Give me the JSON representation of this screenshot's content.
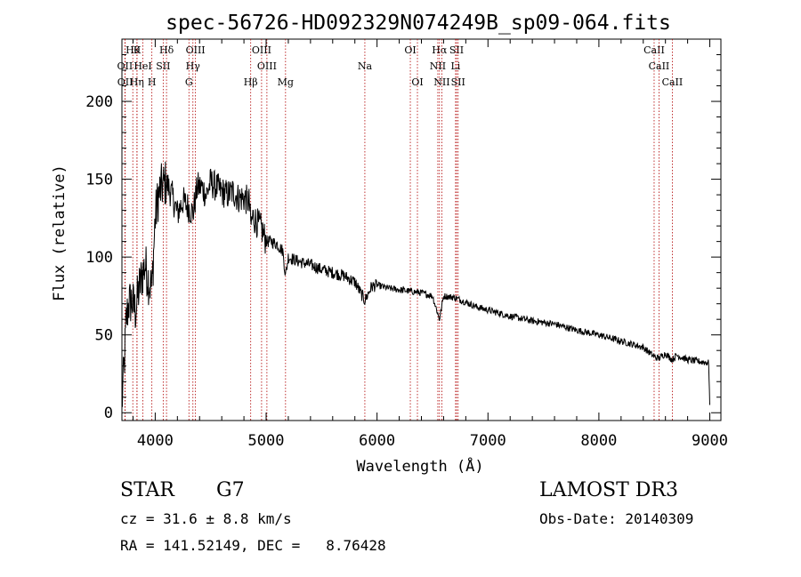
{
  "chart_data": {
    "type": "line",
    "title": "spec-56726-HD092329N074249B_sp09-064.fits",
    "xlabel": "Wavelength (Å)",
    "ylabel": "Flux (relative)",
    "xlim": [
      3700,
      9100
    ],
    "ylim": [
      -5,
      240
    ],
    "xticks": [
      4000,
      5000,
      6000,
      7000,
      8000,
      9000
    ],
    "yticks": [
      0,
      50,
      100,
      150,
      200
    ],
    "series": [
      {
        "name": "spectrum",
        "x": [
          3700,
          3720,
          3740,
          3760,
          3790,
          3820,
          3850,
          3880,
          3910,
          3940,
          3970,
          4000,
          4030,
          4060,
          4100,
          4150,
          4200,
          4250,
          4300,
          4340,
          4380,
          4420,
          4460,
          4500,
          4550,
          4600,
          4650,
          4700,
          4750,
          4800,
          4850,
          4861,
          4880,
          4920,
          4960,
          5000,
          5050,
          5100,
          5150,
          5175,
          5200,
          5300,
          5400,
          5500,
          5600,
          5700,
          5800,
          5890,
          5950,
          6000,
          6100,
          6200,
          6300,
          6400,
          6500,
          6563,
          6600,
          6700,
          6800,
          6900,
          7000,
          7200,
          7400,
          7600,
          7800,
          8000,
          8200,
          8400,
          8498,
          8542,
          8600,
          8662,
          8700,
          8800,
          8900,
          8990,
          9000
        ],
        "y": [
          5,
          30,
          60,
          70,
          72,
          65,
          78,
          88,
          95,
          85,
          80,
          125,
          140,
          145,
          148,
          140,
          128,
          136,
          132,
          128,
          145,
          145,
          140,
          148,
          145,
          142,
          140,
          142,
          138,
          138,
          135,
          120,
          126,
          122,
          118,
          110,
          110,
          108,
          104,
          88,
          100,
          97,
          95,
          92,
          90,
          88,
          84,
          72,
          81,
          82,
          80,
          79,
          78,
          77,
          75,
          60,
          75,
          74,
          71,
          68,
          66,
          62,
          59,
          57,
          53,
          50,
          46,
          42,
          36,
          35,
          38,
          34,
          37,
          34,
          33,
          32,
          5
        ]
      }
    ],
    "lines": [
      {
        "wl": 3798,
        "label": "Hθ",
        "row": 0
      },
      {
        "wl": 3836,
        "label": "K",
        "row": 0
      },
      {
        "wl": 4102,
        "label": "Hδ",
        "row": 0
      },
      {
        "wl": 4363,
        "label": "OIII",
        "row": 0
      },
      {
        "wl": 4959,
        "label": "OIII",
        "row": 0
      },
      {
        "wl": 6300,
        "label": "OI",
        "row": 0
      },
      {
        "wl": 6563,
        "label": "Hα",
        "row": 0
      },
      {
        "wl": 6717,
        "label": "SII",
        "row": 0
      },
      {
        "wl": 8498,
        "label": "CaII",
        "row": 0
      },
      {
        "wl": 3727,
        "label": "OII",
        "row": 1
      },
      {
        "wl": 3889,
        "label": "HeI",
        "row": 1
      },
      {
        "wl": 4072,
        "label": "SII",
        "row": 1
      },
      {
        "wl": 4340,
        "label": "Hγ",
        "row": 1
      },
      {
        "wl": 5007,
        "label": "OIII",
        "row": 1
      },
      {
        "wl": 5890,
        "label": "Na",
        "row": 1
      },
      {
        "wl": 6548,
        "label": "NII",
        "row": 1
      },
      {
        "wl": 6708,
        "label": "Li",
        "row": 1
      },
      {
        "wl": 8542,
        "label": "CaII",
        "row": 1
      },
      {
        "wl": 3729,
        "label": "OII",
        "row": 2
      },
      {
        "wl": 3970,
        "label": "H",
        "row": 2
      },
      {
        "wl": 3835,
        "label": "Hη",
        "row": 2
      },
      {
        "wl": 4304,
        "label": "G",
        "row": 2
      },
      {
        "wl": 4861,
        "label": "Hβ",
        "row": 2
      },
      {
        "wl": 5175,
        "label": "Mg",
        "row": 2
      },
      {
        "wl": 6364,
        "label": "OI",
        "row": 2
      },
      {
        "wl": 6584,
        "label": "NII",
        "row": 2
      },
      {
        "wl": 6731,
        "label": "SII",
        "row": 2
      },
      {
        "wl": 8662,
        "label": "CaII",
        "row": 2
      }
    ]
  },
  "info": {
    "class_label": "STAR",
    "subclass": "G7",
    "survey": "LAMOST DR3",
    "cz": "cz = 31.6 ± 8.8 km/s",
    "obs_date": "Obs-Date: 20140309",
    "coords": "RA = 141.52149, DEC =   8.76428"
  },
  "colors": {
    "spectrum": "#000000",
    "line_marker": "#b00000",
    "axis": "#000000"
  }
}
